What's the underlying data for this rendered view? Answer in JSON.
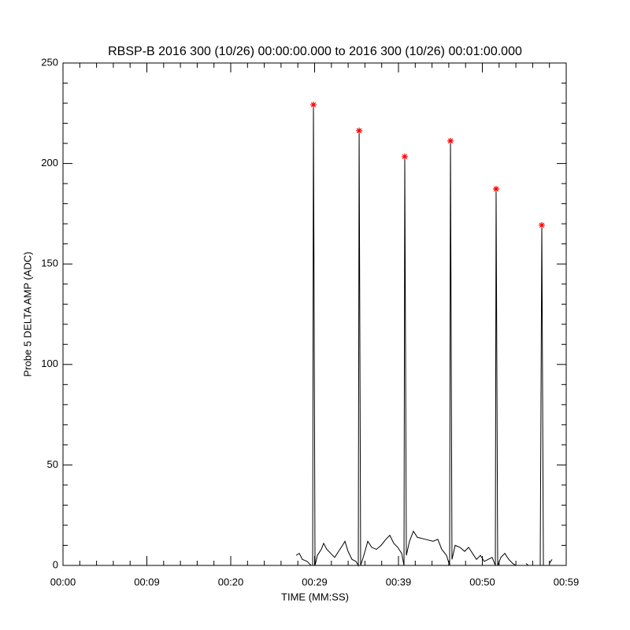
{
  "chart_data": {
    "type": "line",
    "title": "RBSP-B 2016 300 (10/26) 00:00:00.000 to 2016 300 (10/26) 00:01:00.000",
    "x_label": "TIME (MM:SS)",
    "y_label": "Probe 5 DELTA AMP (ADC)",
    "xlim": [
      0,
      60
    ],
    "ylim": [
      0,
      250
    ],
    "xticks": [
      {
        "value": 0,
        "label": "00:00"
      },
      {
        "value": 10,
        "label": "00:09"
      },
      {
        "value": 20,
        "label": "00:20"
      },
      {
        "value": 30,
        "label": "00:29"
      },
      {
        "value": 40,
        "label": "00:39"
      },
      {
        "value": 50,
        "label": "00:50"
      },
      {
        "value": 60,
        "label": "00:59"
      }
    ],
    "yticks": [
      0,
      50,
      100,
      150,
      200,
      250
    ],
    "minor_ticks": 5,
    "grid": false,
    "series": [
      {
        "color": "#000000",
        "style": "line",
        "x": [
          27.79,
          28.17,
          28.54,
          29.11,
          29.58,
          29.77,
          29.86,
          30.05,
          30.33,
          30.8,
          31.08,
          31.46,
          31.92,
          32.39,
          32.86,
          33.33,
          33.62,
          33.99,
          34.46,
          34.93,
          35.21,
          35.31,
          35.49,
          35.87,
          36.34,
          36.81,
          37.37,
          37.93,
          38.5,
          38.97,
          39.44,
          39.91,
          40.38,
          40.66,
          40.75,
          40.94,
          41.31,
          41.78,
          42.25,
          43.19,
          44.13,
          44.69,
          45.16,
          45.73,
          46.1,
          46.2,
          46.38,
          46.76,
          47.32,
          47.89,
          48.36,
          48.83,
          49.3,
          49.77,
          50.23,
          50.7,
          51.17,
          51.55,
          51.64,
          51.83,
          52.21,
          52.68,
          53.15,
          53.62,
          53.99,
          54.5,
          55.21,
          55.49,
          55.8,
          56.9,
          57.09,
          57.28,
          57.6,
          58.0,
          58.31
        ],
        "values": [
          5,
          6,
          3,
          2,
          0,
          0,
          229,
          0,
          5,
          8,
          11,
          8,
          6,
          4,
          7,
          10,
          12,
          7,
          3,
          2,
          0,
          216,
          0,
          5,
          12,
          9,
          8,
          10,
          13,
          15,
          11,
          9,
          6,
          0,
          203,
          5,
          12,
          17,
          14,
          13,
          12,
          13,
          8,
          5,
          0,
          211,
          3,
          10,
          9,
          7,
          9,
          6,
          3,
          5,
          2,
          3,
          4,
          0,
          187,
          0,
          4,
          6,
          3,
          1,
          0,
          null,
          1,
          0,
          null,
          0,
          169,
          0,
          null,
          1,
          3
        ]
      },
      {
        "color": "#ff0000",
        "style": "asterisk",
        "x": [
          29.86,
          35.31,
          40.75,
          46.2,
          51.64,
          57.09
        ],
        "values": [
          229.2,
          216.3,
          203.4,
          211.2,
          187.3,
          169.3
        ]
      }
    ]
  }
}
